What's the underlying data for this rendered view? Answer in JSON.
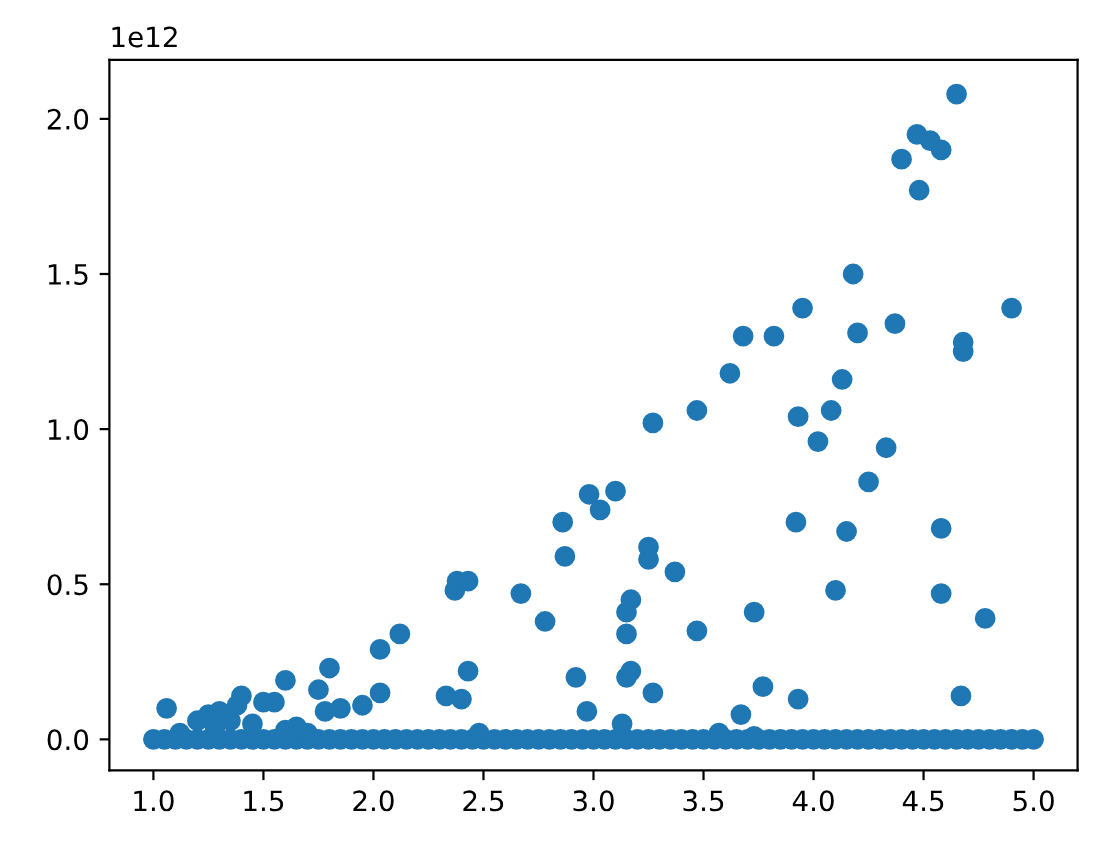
{
  "chart_data": {
    "type": "scatter",
    "marker": "circle",
    "grid": false,
    "annotations": [
      "1e12"
    ],
    "xlim": [
      0.8,
      5.2
    ],
    "ylim": [
      -0.1,
      2.19
    ],
    "xticks": [
      {
        "value": 1,
        "label": "1.0"
      },
      1.5,
      {
        "value": 2,
        "label": "2.0"
      },
      2.5,
      {
        "value": 3,
        "label": "3.0"
      },
      3.5,
      {
        "value": 4,
        "label": "4.0"
      },
      4.5,
      {
        "value": 5,
        "label": "5.0"
      }
    ],
    "yticks": [
      {
        "value": 0,
        "label": "0.0"
      },
      0.5,
      {
        "value": 1,
        "label": "1.0"
      },
      1.5,
      {
        "value": 2,
        "label": "2.0"
      }
    ],
    "series": [
      {
        "color": "#1f77b4",
        "x": [
          1.0,
          1.05,
          1.1,
          1.15,
          1.2,
          1.25,
          1.3,
          1.35,
          1.4,
          1.45,
          1.5,
          1.55,
          1.6,
          1.65,
          1.7,
          1.75,
          1.8,
          1.85,
          1.9,
          1.95,
          2.0,
          2.05,
          2.1,
          2.15,
          2.2,
          2.25,
          2.3,
          2.35,
          2.4,
          2.45,
          2.5,
          2.55,
          2.6,
          2.65,
          2.7,
          2.75,
          2.8,
          2.85,
          2.9,
          2.95,
          3.0,
          3.05,
          3.1,
          3.15,
          3.2,
          3.25,
          3.3,
          3.35,
          3.4,
          3.45,
          3.5,
          3.55,
          3.6,
          3.65,
          3.7,
          3.75,
          3.8,
          3.85,
          3.9,
          3.95,
          4.0,
          4.05,
          4.1,
          4.15,
          4.2,
          4.25,
          4.3,
          4.35,
          4.4,
          4.45,
          4.5,
          4.55,
          4.6,
          4.65,
          4.7,
          4.75,
          4.8,
          4.85,
          4.9,
          4.95,
          5.0,
          1.06,
          1.12,
          1.2,
          1.25,
          1.28,
          1.3,
          1.35,
          1.38,
          1.4,
          1.45,
          1.5,
          1.55,
          1.6,
          1.6,
          1.65,
          1.7,
          1.75,
          1.78,
          1.8,
          1.85,
          1.95,
          2.03,
          2.03,
          2.12,
          2.33,
          2.37,
          2.38,
          2.4,
          2.43,
          2.43,
          2.48,
          2.67,
          2.78,
          2.86,
          2.87,
          2.92,
          2.97,
          2.98,
          3.03,
          3.1,
          3.13,
          3.15,
          3.15,
          3.17,
          3.15,
          3.17,
          3.25,
          3.25,
          3.27,
          3.27,
          3.37,
          3.47,
          3.47,
          3.57,
          3.62,
          3.67,
          3.68,
          3.73,
          3.73,
          3.77,
          3.82,
          3.92,
          3.93,
          3.93,
          3.95,
          4.02,
          4.08,
          4.1,
          4.13,
          4.15,
          4.18,
          4.2,
          4.25,
          4.33,
          4.37,
          4.4,
          4.47,
          4.48,
          4.53,
          4.58,
          4.58,
          4.58,
          4.65,
          4.67,
          4.68,
          4.68,
          4.78,
          4.9
        ],
        "values": [
          0,
          0,
          0,
          0,
          0,
          0,
          0,
          0,
          0,
          0,
          0,
          0,
          0,
          0,
          0,
          0,
          0,
          0,
          0,
          0,
          0,
          0,
          0,
          0,
          0,
          0,
          0,
          0,
          0,
          0,
          0,
          0,
          0,
          0,
          0,
          0,
          0,
          0,
          0,
          0,
          0,
          0,
          0,
          0,
          0,
          0,
          0,
          0,
          0,
          0,
          0,
          0,
          0,
          0,
          0,
          0,
          0,
          0,
          0,
          0,
          0,
          0,
          0,
          0,
          0,
          0,
          0,
          0,
          0,
          0,
          0,
          0,
          0,
          0,
          0,
          0,
          0,
          0,
          0,
          0,
          0,
          0.1,
          0.02,
          0.06,
          0.08,
          0.04,
          0.09,
          0.06,
          0.11,
          0.14,
          0.05,
          0.12,
          0.12,
          0.19,
          0.03,
          0.04,
          0.02,
          0.16,
          0.09,
          0.23,
          0.1,
          0.11,
          0.15,
          0.29,
          0.34,
          0.14,
          0.48,
          0.51,
          0.13,
          0.51,
          0.22,
          0.02,
          0.47,
          0.38,
          0.7,
          0.59,
          0.2,
          0.09,
          0.79,
          0.74,
          0.8,
          0.05,
          0.34,
          0.41,
          0.45,
          0.2,
          0.22,
          0.62,
          0.58,
          0.15,
          1.02,
          0.54,
          1.06,
          0.35,
          0.02,
          1.18,
          0.08,
          1.3,
          0.41,
          0.01,
          0.17,
          1.3,
          0.7,
          0.13,
          1.04,
          1.39,
          0.96,
          1.06,
          0.48,
          1.16,
          0.67,
          1.5,
          1.31,
          0.83,
          0.94,
          1.34,
          1.87,
          1.95,
          1.77,
          1.93,
          1.9,
          0.68,
          0.47,
          2.08,
          0.14,
          1.28,
          1.25,
          0.39,
          1.39
        ]
      }
    ]
  }
}
